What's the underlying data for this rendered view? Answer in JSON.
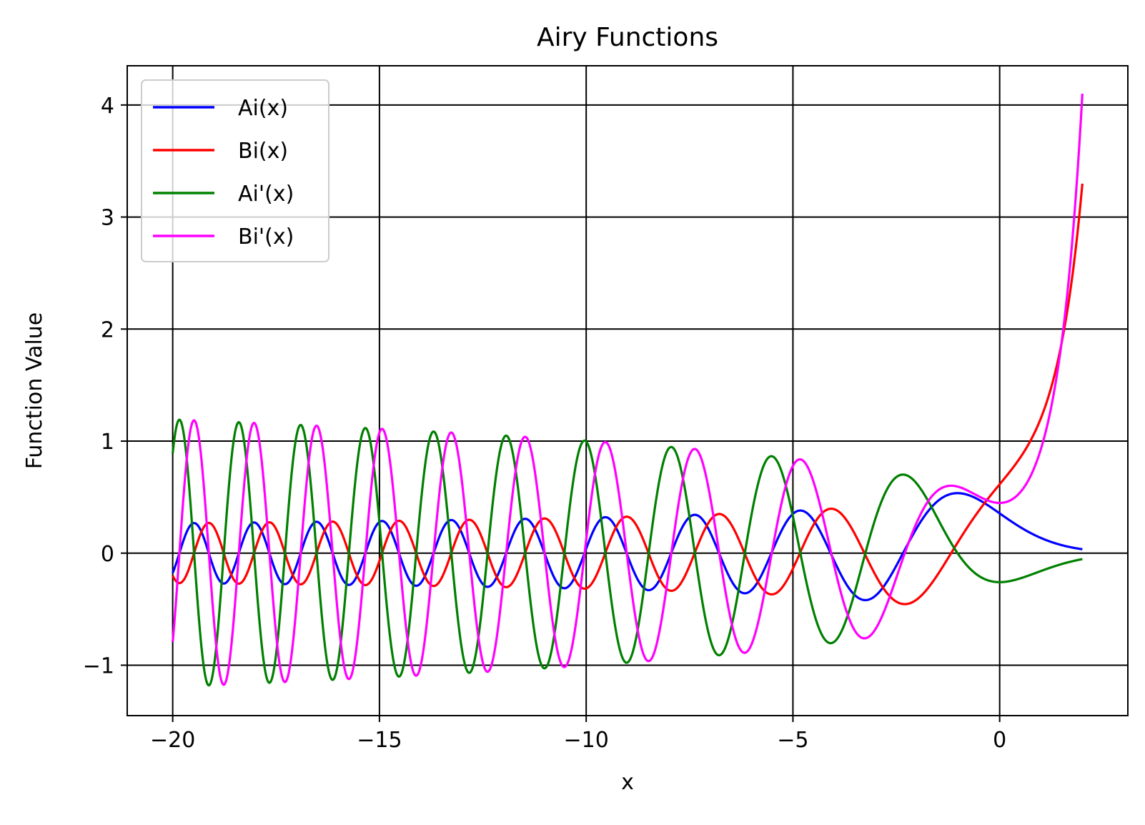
{
  "chart_data": {
    "type": "line",
    "title": "Airy Functions",
    "xlabel": "x",
    "ylabel": "Function Value",
    "xlim": [
      -21.1,
      3.1
    ],
    "ylim": [
      -1.45,
      4.35
    ],
    "xticks": [
      -20,
      -15,
      -10,
      -5,
      0
    ],
    "xtick_labels": [
      "−20",
      "−15",
      "−10",
      "−5",
      "0"
    ],
    "yticks": [
      -1,
      0,
      1,
      2,
      3,
      4
    ],
    "ytick_labels": [
      "−1",
      "0",
      "1",
      "2",
      "3",
      "4"
    ],
    "grid": true,
    "legend_position": "top-left",
    "x_range": [
      -20,
      2
    ],
    "series": [
      {
        "name": "Ai(x)",
        "color": "#0000ff",
        "function": "Ai"
      },
      {
        "name": "Bi(x)",
        "color": "#ff0000",
        "function": "Bi"
      },
      {
        "name": "Ai'(x)",
        "color": "#008000",
        "function": "AiPrime"
      },
      {
        "name": "Bi'(x)",
        "color": "#ff00ff",
        "function": "BiPrime"
      }
    ]
  }
}
